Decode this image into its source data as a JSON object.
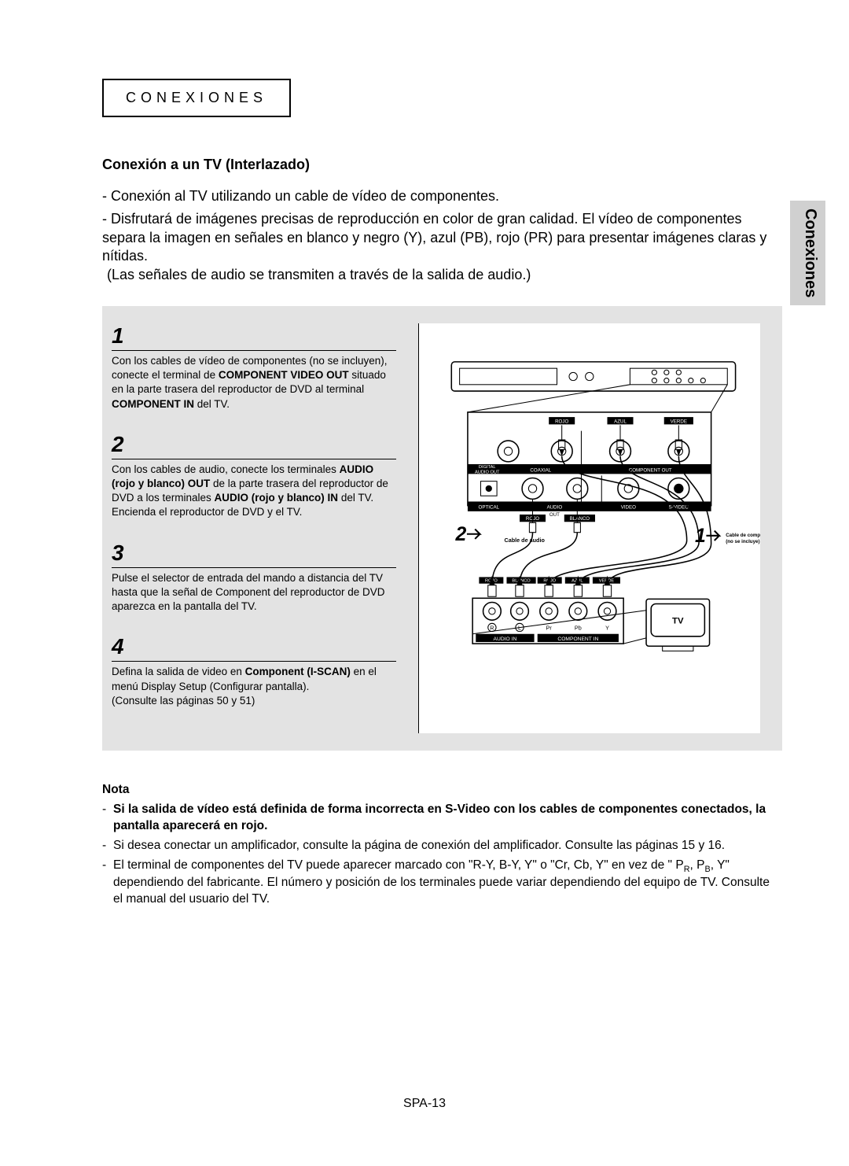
{
  "header": {
    "label": "CONEXIONES"
  },
  "side_tab": "Conexiones",
  "section_title": "Conexión a un TV (Interlazado)",
  "intro": {
    "line1": "Conexión al TV utilizando un cable de vídeo de componentes.",
    "line2a": "Disfrutará de imágenes precisas de reproducción en color de gran calidad. El vídeo de componentes separa la imagen en señales en blanco y negro (Y), azul (PB), rojo (PR) para presentar imágenes claras y nítidas.",
    "line2b": "(Las señales de audio se transmiten a través de la salida de audio.)"
  },
  "steps": [
    {
      "num": "1",
      "html": "Con los cables de vídeo de componentes (no se incluyen), conecte el terminal de <b>COMPONENT VIDEO OUT</b> situado en la parte trasera del reproductor de DVD al terminal <b>COMPONENT IN</b> del TV."
    },
    {
      "num": "2",
      "html": "Con los cables de audio, conecte los terminales <b>AUDIO (rojo y blanco) OUT</b> de la parte trasera del reproductor de DVD a los terminales <b>AUDIO (rojo y blanco) IN</b> del TV.<br>Encienda el reproductor de DVD y el TV."
    },
    {
      "num": "3",
      "html": "Pulse el selector de entrada del mando a distancia del TV hasta que la señal de Component del reproductor de DVD aparezca en la pantalla del TV."
    },
    {
      "num": "4",
      "html": "Defina la salida de video en <b>Component (I-SCAN)</b> en el menú Display Setup (Configurar pantalla).<br>(Consulte las páginas 50 y 51)"
    }
  ],
  "diagram": {
    "unit_top_labels": {
      "rojo": "ROJO",
      "azul": "AZUL",
      "verde": "VERDE"
    },
    "unit_mid_labels": {
      "digital_audio_out": "DIGITAL\nAUDIO OUT",
      "coaxial": "COAXIAL",
      "component_out": "COMPONENT OUT"
    },
    "unit_bot_labels": {
      "optical": "OPTICAL",
      "audio": "AUDIO",
      "out": "OUT",
      "video": "VIDEO",
      "svideo": "S-VIDEO"
    },
    "cable_audio_title": "Cable de audio",
    "cable_audio_colors": {
      "rojo": "ROJO",
      "blanco": "BLANCO"
    },
    "cable_component_title": "Cable de componentes\n(no se incluye)",
    "tv_top_colors": {
      "rojo": "ROJO",
      "blanco": "BLANCO",
      "azul": "AZUL",
      "verde": "VERDE"
    },
    "tv_port_labels": {
      "r": "R",
      "l": "L",
      "pr": "Pr",
      "pb": "Pb",
      "y": "Y"
    },
    "tv_group_labels": {
      "audio_in": "AUDIO IN",
      "component_in": "COMPONENT IN"
    },
    "tv_label": "TV",
    "marker_2": "2",
    "marker_1": "1",
    "colors": {
      "rojo": "#000000",
      "azul": "#000000",
      "verde": "#000000",
      "blanco": "#ffffff",
      "bg": "#ffffff",
      "line": "#000000",
      "label_bg": "#000000",
      "label_fg": "#ffffff"
    },
    "font_sizes": {
      "tiny": 5.5,
      "small": 7,
      "marker": 22,
      "tv": 10
    }
  },
  "nota": {
    "title": "Nota",
    "items": [
      {
        "bold": true,
        "html": "Si la salida de vídeo está definida de forma incorrecta en S-Video con los cables de componentes conectados, la pantalla aparecerá en rojo."
      },
      {
        "bold": false,
        "html": "Si desea conectar un amplificador, consulte la página de conexión del amplificador. Consulte las páginas 15 y 16."
      },
      {
        "bold": false,
        "html": "El terminal de componentes del TV puede aparecer marcado con \"R-Y, B-Y, Y\" o \"Cr, Cb, Y\" en vez de \" P<sub>R</sub>, P<sub>B</sub>, Y\" dependiendo del fabricante. El número y posición de los terminales puede variar dependiendo del equipo de TV. Consulte el manual del usuario del TV."
      }
    ]
  },
  "footer": "SPA-13"
}
